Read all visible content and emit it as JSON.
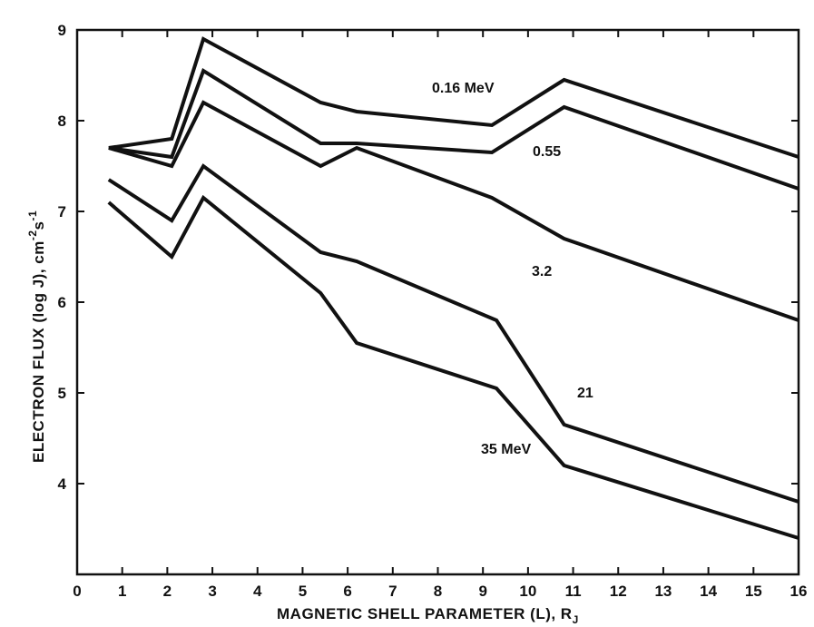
{
  "chart_data": {
    "type": "line",
    "title": "",
    "xlabel": "MAGNETIC SHELL PARAMETER (L), R",
    "xlabel_subscript": "J",
    "ylabel": "ELECTRON FLUX (log J), cm",
    "ylabel_units_tail": "s",
    "ylabel_exp1": "-2",
    "ylabel_exp2": "-1",
    "xlim": [
      0,
      16
    ],
    "ylim": [
      3,
      9
    ],
    "x_ticks": [
      "0",
      "1",
      "2",
      "3",
      "4",
      "5",
      "6",
      "7",
      "8",
      "9",
      "10",
      "11",
      "12",
      "13",
      "14",
      "15",
      "16"
    ],
    "y_ticks": [
      "4",
      "5",
      "6",
      "7",
      "8",
      "9"
    ],
    "grid": false,
    "series": [
      {
        "name": "0.16 MeV",
        "x": [
          0.7,
          2.1,
          2.8,
          5.4,
          6.2,
          9.2,
          10.8,
          16
        ],
        "y": [
          7.7,
          7.8,
          8.9,
          8.2,
          8.1,
          7.95,
          8.45,
          7.6
        ]
      },
      {
        "name": "0.55",
        "x": [
          0.7,
          2.1,
          2.8,
          5.4,
          6.2,
          9.2,
          10.8,
          16
        ],
        "y": [
          7.7,
          7.6,
          8.55,
          7.75,
          7.75,
          7.65,
          8.15,
          7.25
        ]
      },
      {
        "name": "3.2",
        "x": [
          0.7,
          2.1,
          2.8,
          5.4,
          6.2,
          9.2,
          10.8,
          16
        ],
        "y": [
          7.7,
          7.5,
          8.2,
          7.5,
          7.7,
          7.15,
          6.7,
          5.8
        ]
      },
      {
        "name": "21",
        "x": [
          0.7,
          2.1,
          2.8,
          5.4,
          6.2,
          9.3,
          10.8,
          16
        ],
        "y": [
          7.35,
          6.9,
          7.5,
          6.55,
          6.45,
          5.8,
          4.65,
          3.8
        ]
      },
      {
        "name": "35 MeV",
        "x": [
          0.7,
          2.1,
          2.8,
          5.4,
          6.2,
          9.3,
          10.8,
          16
        ],
        "y": [
          7.1,
          6.5,
          7.15,
          6.1,
          5.55,
          5.05,
          4.2,
          3.4
        ]
      }
    ]
  }
}
